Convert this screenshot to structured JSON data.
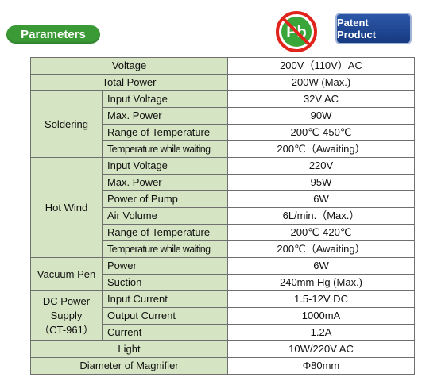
{
  "header": {
    "section_label": "Parameters",
    "pb_logo_text": "Pb",
    "patent_badge": "Patent Product"
  },
  "rows": {
    "voltage": {
      "label": "Voltage",
      "value": "200V（110V）AC"
    },
    "total_power": {
      "label": "Total Power",
      "value": "200W (Max.)"
    },
    "soldering": {
      "group": "Soldering",
      "input_voltage": {
        "label": "Input Voltage",
        "value": "32V AC"
      },
      "max_power": {
        "label": "Max. Power",
        "value": "90W"
      },
      "temp_range": {
        "label": "Range of Temperature",
        "value": "200℃-450℃"
      },
      "temp_waiting": {
        "label": "Temperature while waiting",
        "value": "200℃（Awaiting）"
      }
    },
    "hot_wind": {
      "group": "Hot Wind",
      "input_voltage": {
        "label": "Input Voltage",
        "value": "220V"
      },
      "max_power": {
        "label": "Max. Power",
        "value": "95W"
      },
      "pump_power": {
        "label": "Power of Pump",
        "value": "6W"
      },
      "air_volume": {
        "label": "Air Volume",
        "value": "6L/min.（Max.）"
      },
      "temp_range": {
        "label": "Range of Temperature",
        "value": "200℃-420℃"
      },
      "temp_waiting": {
        "label": "Temperature while waiting",
        "value": "200℃（Awaiting）"
      }
    },
    "vacuum_pen": {
      "group": "Vacuum Pen",
      "power": {
        "label": "Power",
        "value": "6W"
      },
      "suction": {
        "label": "Suction",
        "value": "240mm Hg (Max.)"
      }
    },
    "dc_power": {
      "group_line1": "DC Power",
      "group_line2": "Supply",
      "group_line3": "（CT-961）",
      "input_current": {
        "label": "Input Current",
        "value": "1.5-12V DC"
      },
      "output_current": {
        "label": "Output Current",
        "value": "1000mA"
      },
      "current": {
        "label": "Current",
        "value": "1.2A"
      }
    },
    "light": {
      "label": "Light",
      "value": "10W/220V AC"
    },
    "magnifier": {
      "label": "Diameter of Magnifier",
      "value": "Φ80mm"
    }
  }
}
